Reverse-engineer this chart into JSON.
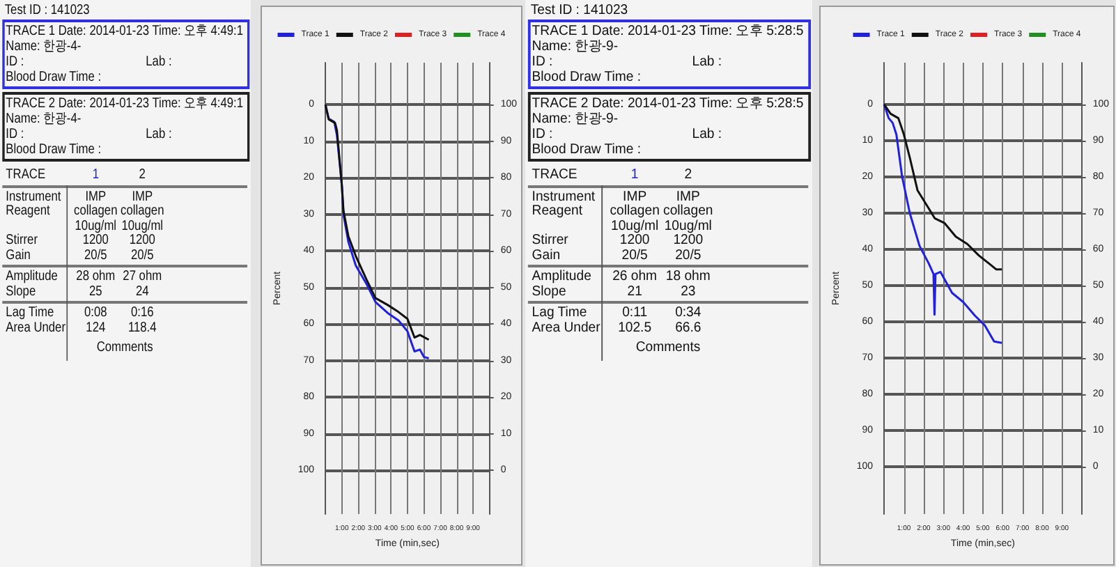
{
  "chart_data": [
    {
      "type": "other",
      "title": "Test ID : 141023",
      "annotations": [
        "TRACE 1 Date: 2014-01-23 Time: 오후 4:49:1",
        "Name: 한광-4-",
        "ID :",
        "Lab :",
        "Blood Draw Time :",
        "TRACE 2 Date: 2014-01-23 Time: 오후 4:49:1",
        "Name: 한광-4-",
        "ID :",
        "Lab :",
        "Blood Draw Time :",
        "TRACE",
        "1",
        "2",
        "Instrument",
        "IMP",
        "IMP",
        "Reagent",
        "collagen",
        "collagen",
        "10ug/ml",
        "10ug/ml",
        "Stirrer",
        "1200",
        "1200",
        "Gain",
        "20/5",
        "20/5",
        "Amplitude",
        "28 ohm",
        "27 ohm",
        "Slope",
        "25",
        "24",
        "Lag Time",
        "0:08",
        "0:16",
        "Area Under",
        "124",
        "118.4",
        "Comments"
      ]
    },
    {
      "type": "line",
      "xlabel": "Time (min,sec)",
      "ylabel": "Percent",
      "xlim": [
        0,
        10
      ],
      "xticks": [
        {
          "value": 1,
          "label": "1:00"
        },
        {
          "value": 2,
          "label": "2:00"
        },
        {
          "value": 3,
          "label": "3:00"
        },
        {
          "value": 4,
          "label": "4:00"
        },
        {
          "value": 5,
          "label": "5:00"
        },
        {
          "value": 6,
          "label": "6:00"
        },
        {
          "value": 7,
          "label": "7:00"
        },
        {
          "value": 8,
          "label": "8:00"
        },
        {
          "value": 9,
          "label": "9:00"
        }
      ],
      "ylim": [
        112,
        -11.5
      ],
      "yticks": [
        0,
        10,
        20,
        30,
        40,
        50,
        60,
        70,
        80,
        90,
        100
      ],
      "y2lim": [
        -12,
        111.5
      ],
      "y2ticks": [
        0,
        10,
        20,
        30,
        40,
        50,
        60,
        70,
        80,
        90,
        100
      ],
      "grid": true,
      "legend": "top",
      "line_style": "solid",
      "series": [
        {
          "name": "Trace 1",
          "color": "#2020e0",
          "x": [
            0,
            0.2,
            0.54,
            0.7,
            1.0,
            1.1,
            1.4,
            1.85,
            2.5,
            3.05,
            3.8,
            4.45,
            5.0,
            5.43,
            5.76,
            6.0,
            6.3
          ],
          "values": [
            0,
            3.8,
            4.7,
            8.3,
            22,
            30,
            37.6,
            44,
            49,
            54,
            57,
            59,
            62,
            67.5,
            67,
            69,
            69.4
          ]
        },
        {
          "name": "Trace 2",
          "color": "#111111",
          "x": [
            0,
            0.2,
            0.59,
            0.7,
            1.0,
            1.1,
            1.4,
            1.85,
            2.5,
            3.05,
            3.8,
            4.45,
            5.0,
            5.43,
            5.76,
            6.3
          ],
          "values": [
            0,
            4,
            5,
            7,
            22,
            29,
            36,
            41.4,
            47.8,
            52.9,
            54.8,
            56.7,
            58.6,
            63.7,
            63,
            64.3
          ]
        },
        {
          "name": "Trace 3",
          "color": "#e02020"
        },
        {
          "name": "Trace 4",
          "color": "#209020"
        }
      ]
    },
    {
      "type": "other",
      "title": "Test ID : 141023",
      "annotations": [
        "TRACE 1 Date: 2014-01-23 Time: 오후 5:28:5",
        "Name: 한광-9-",
        "ID :",
        "Lab :",
        "Blood Draw Time :",
        "TRACE 2 Date: 2014-01-23 Time: 오후 5:28:5",
        "Name: 한광-9-",
        "ID :",
        "Lab :",
        "Blood Draw Time :",
        "TRACE",
        "1",
        "2",
        "Instrument",
        "IMP",
        "IMP",
        "Reagent",
        "collagen",
        "collagen",
        "10ug/ml",
        "10ug/ml",
        "Stirrer",
        "1200",
        "1200",
        "Gain",
        "20/5",
        "20/5",
        "Amplitude",
        "26 ohm",
        "18 ohm",
        "Slope",
        "21",
        "23",
        "Lag Time",
        "0:11",
        "0:34",
        "Area Under",
        "102.5",
        "66.6",
        "Comments"
      ]
    },
    {
      "type": "line",
      "xlabel": "Time (min,sec)",
      "ylabel": "Percent",
      "xlim": [
        0,
        10
      ],
      "xticks": [
        {
          "value": 1,
          "label": "1:00"
        },
        {
          "value": 2,
          "label": "2:00"
        },
        {
          "value": 3,
          "label": "3:00"
        },
        {
          "value": 4,
          "label": "4:00"
        },
        {
          "value": 5,
          "label": "5:00"
        },
        {
          "value": 6,
          "label": "6:00"
        },
        {
          "value": 7,
          "label": "7:00"
        },
        {
          "value": 8,
          "label": "8:00"
        },
        {
          "value": 9,
          "label": "9:00"
        }
      ],
      "ylim": [
        113,
        -11.5
      ],
      "yticks": [
        0,
        10,
        20,
        30,
        40,
        50,
        60,
        70,
        80,
        90,
        100
      ],
      "y2lim": [
        -13,
        111.5
      ],
      "y2ticks": [
        0,
        10,
        20,
        30,
        40,
        50,
        60,
        70,
        80,
        90,
        100
      ],
      "grid": true,
      "legend": "top",
      "line_style": "solid",
      "series": [
        {
          "name": "Trace 1",
          "color": "#2020e0",
          "x": [
            0,
            0.23,
            0.43,
            0.62,
            0.91,
            1.3,
            1.79,
            2.27,
            2.5,
            2.55,
            2.6,
            2.85,
            3.44,
            4.0,
            4.6,
            5.09,
            5.57,
            5.96
          ],
          "values": [
            0,
            3.8,
            5.1,
            8.3,
            19.9,
            30,
            39,
            44,
            46.8,
            58,
            46.8,
            46.2,
            52,
            54.5,
            58.3,
            60.9,
            65.4,
            65.8
          ]
        },
        {
          "name": "Trace 2",
          "color": "#111111",
          "x": [
            0,
            0.33,
            0.72,
            1.0,
            1.3,
            1.69,
            2.27,
            2.56,
            3.05,
            3.63,
            4.21,
            4.8,
            5.38,
            5.67,
            5.96
          ],
          "values": [
            0,
            2.6,
            3.8,
            8.3,
            14.7,
            23.7,
            28.8,
            31.4,
            32.7,
            36.5,
            38.5,
            41.7,
            44.2,
            45.5,
            45.5
          ]
        },
        {
          "name": "Trace 3",
          "color": "#e02020"
        },
        {
          "name": "Trace 4",
          "color": "#209020"
        }
      ]
    }
  ]
}
